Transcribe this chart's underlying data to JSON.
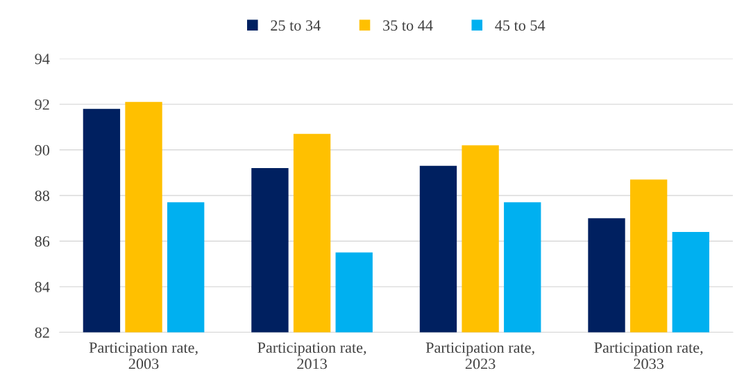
{
  "chart_data": {
    "type": "bar",
    "categories": [
      "Participation rate,\n2003",
      "Participation rate,\n2013",
      "Participation rate,\n2023",
      "Participation rate,\n2033"
    ],
    "series": [
      {
        "name": "25 to 34",
        "color": "#002060",
        "values": [
          91.8,
          89.2,
          89.3,
          87.0
        ]
      },
      {
        "name": "35 to 44",
        "color": "#ffc000",
        "values": [
          92.1,
          90.7,
          90.2,
          88.7
        ]
      },
      {
        "name": "45 to 54",
        "color": "#00b0f0",
        "values": [
          87.7,
          85.5,
          87.7,
          86.4
        ]
      }
    ],
    "ylim": [
      82,
      94
    ],
    "yticks": [
      82,
      84,
      86,
      88,
      90,
      92,
      94
    ],
    "grid": "y",
    "legend": "top"
  }
}
